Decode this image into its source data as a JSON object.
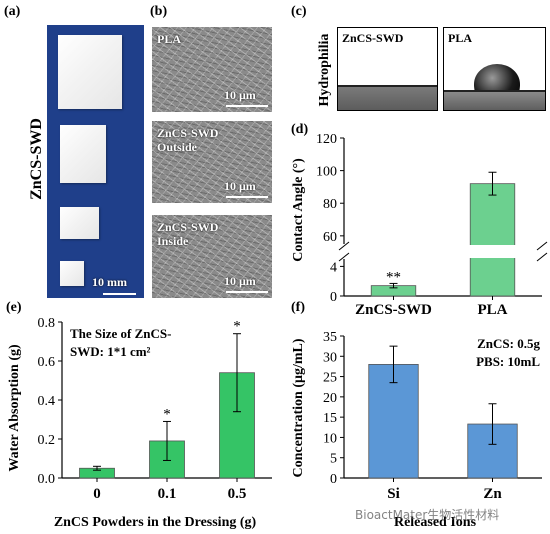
{
  "panel_a": {
    "label": "(a)",
    "side_label": "ZnCS-SWD",
    "scale_bar": "10 mm"
  },
  "panel_b": {
    "label": "(b)",
    "images": [
      {
        "title_lines": [
          "PLA"
        ],
        "scale_bar": "10 μm"
      },
      {
        "title_lines": [
          "ZnCS-SWD",
          "Outside"
        ],
        "scale_bar": "10 μm"
      },
      {
        "title_lines": [
          "ZnCS-SWD",
          "Inside"
        ],
        "scale_bar": "10 μm"
      }
    ]
  },
  "panel_c": {
    "label": "(c)",
    "side_label": "Hydrophilia",
    "images": [
      {
        "title": "ZnCS-SWD"
      },
      {
        "title": "PLA"
      }
    ]
  },
  "panel_d": {
    "label": "(d)"
  },
  "panel_e": {
    "label": "(e)"
  },
  "panel_f": {
    "label": "(f)"
  },
  "watermark": "BioactMater生物活性材料",
  "chart_data": [
    {
      "panel": "d",
      "type": "bar",
      "categories": [
        "ZnCS-SWD",
        "PLA"
      ],
      "values": [
        1.4,
        92
      ],
      "errors": [
        0.3,
        7
      ],
      "annotations": [
        "**",
        ""
      ],
      "ylabel": "Contact Angle (°)",
      "axis_break": {
        "lower": [
          0,
          5
        ],
        "upper": [
          55,
          120
        ]
      },
      "yticks_lower": [
        0,
        4
      ],
      "yticks_upper": [
        60,
        80,
        100,
        120
      ],
      "color": "#6cd08f"
    },
    {
      "panel": "e",
      "type": "bar",
      "categories": [
        "0",
        "0.1",
        "0.5"
      ],
      "values": [
        0.05,
        0.19,
        0.54
      ],
      "errors": [
        0.01,
        0.1,
        0.2
      ],
      "annotations": [
        "",
        "*",
        "*"
      ],
      "xlabel": "ZnCS Powders in the Dressing (g)",
      "ylabel": "Water Absorption (g)",
      "ylim": [
        0,
        0.8
      ],
      "yticks": [
        0.0,
        0.2,
        0.4,
        0.6,
        0.8
      ],
      "inset_text_lines": [
        "The Size of ZnCS-",
        "SWD: 1*1 cm²"
      ],
      "color": "#35c466"
    },
    {
      "panel": "f",
      "type": "bar",
      "categories": [
        "Si",
        "Zn"
      ],
      "values": [
        28,
        13.3
      ],
      "errors": [
        4.5,
        5
      ],
      "xlabel": "Released Ions",
      "ylabel": "Concentration (μg/mL)",
      "ylim": [
        0,
        35
      ],
      "yticks": [
        0,
        5,
        10,
        15,
        20,
        25,
        30,
        35
      ],
      "inset_text_lines": [
        "ZnCS: 0.5g",
        "PBS: 10mL"
      ],
      "color": "#5b97d6"
    }
  ]
}
